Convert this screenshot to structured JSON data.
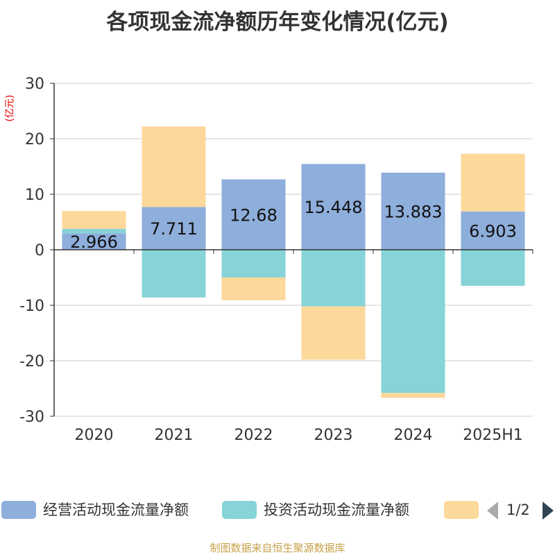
{
  "title": "各项现金流净额历年变化情况(亿元)",
  "y_unit": "(亿元)",
  "colors": {
    "operating": "#8eaedb",
    "investing": "#86d4d7",
    "financing": "#fdd89b",
    "axis": "#333333",
    "grid": "#cccccc",
    "text": "#333333",
    "unit": "#e60000",
    "source": "#c8a048"
  },
  "chart_data": {
    "type": "bar",
    "stacked": true,
    "categories": [
      "2020",
      "2021",
      "2022",
      "2023",
      "2024",
      "2025H1"
    ],
    "ylim": [
      -30,
      30
    ],
    "yticks": [
      30,
      20,
      10,
      0,
      -10,
      -20,
      -30
    ],
    "grid": true,
    "series": [
      {
        "key": "operating",
        "name": "经营活动现金流量净额",
        "values": [
          2.966,
          7.711,
          12.68,
          15.448,
          13.883,
          6.903
        ]
      },
      {
        "key": "investing",
        "name": "投资活动现金流量净额",
        "values": [
          0.8,
          -8.6,
          -5.0,
          -10.2,
          -25.8,
          -6.5
        ]
      },
      {
        "key": "financing",
        "name": "",
        "values": [
          3.2,
          14.5,
          -4.1,
          -9.6,
          -0.9,
          10.4
        ]
      }
    ],
    "data_labels": [
      "2.966",
      "7.711",
      "12.68",
      "15.448",
      "13.883",
      "6.903"
    ],
    "legend_position": "bottom"
  },
  "legend": {
    "items": [
      {
        "label": "经营活动现金流量净额",
        "color_key": "operating"
      },
      {
        "label": "投资活动现金流量净额",
        "color_key": "investing"
      },
      {
        "label": "",
        "color_key": "financing"
      }
    ],
    "page_text": "1/2"
  },
  "source_text": "制图数据来自恒生聚源数据库"
}
